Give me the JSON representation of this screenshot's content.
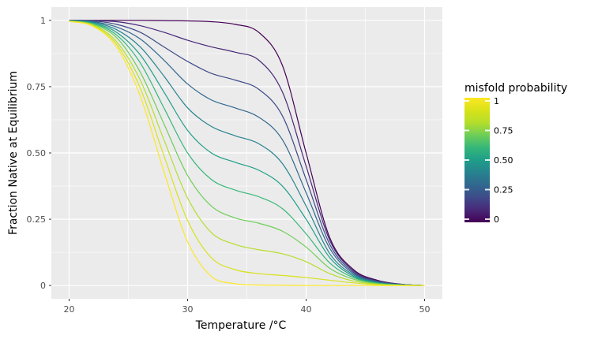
{
  "chart_data": {
    "type": "line",
    "xlabel": "Temperature /°C",
    "ylabel": "Fraction Native at Equilibrium",
    "xlim": [
      18.5,
      51.5
    ],
    "ylim": [
      -0.05,
      1.05
    ],
    "x_ticks": [
      20,
      30,
      40,
      50
    ],
    "x_tick_labels": [
      "20",
      "30",
      "40",
      "50"
    ],
    "y_ticks": [
      0,
      0.25,
      0.5,
      0.75,
      1
    ],
    "y_tick_labels": [
      "0",
      "0.25",
      "0.50",
      "0.75",
      "1"
    ],
    "grid": true,
    "legend": {
      "title": "misfold probability",
      "placement": "right",
      "type": "colorbar",
      "range": [
        0,
        1
      ],
      "breaks": [
        0,
        0.25,
        0.5,
        0.75,
        1
      ],
      "labels": [
        "0",
        "0.25",
        "0.50",
        "0.75",
        "1"
      ]
    },
    "colormap": "viridis",
    "x": [
      20,
      22,
      24,
      26,
      28,
      30,
      32,
      34,
      36,
      38,
      40,
      42,
      44,
      46,
      48,
      50
    ],
    "series": [
      {
        "color_value": 0.0,
        "values": [
          1.0,
          1.0,
          1.0,
          1.0,
          0.999,
          0.998,
          0.995,
          0.985,
          0.955,
          0.83,
          0.5,
          0.18,
          0.06,
          0.02,
          0.005,
          0.0
        ]
      },
      {
        "color_value": 0.1,
        "values": [
          1.0,
          0.999,
          0.995,
          0.98,
          0.955,
          0.925,
          0.9,
          0.88,
          0.85,
          0.73,
          0.45,
          0.17,
          0.055,
          0.018,
          0.005,
          0.0
        ]
      },
      {
        "color_value": 0.2,
        "values": [
          1.0,
          0.998,
          0.985,
          0.955,
          0.9,
          0.845,
          0.8,
          0.775,
          0.74,
          0.64,
          0.4,
          0.155,
          0.05,
          0.016,
          0.004,
          0.0
        ]
      },
      {
        "color_value": 0.3,
        "values": [
          0.999,
          0.995,
          0.975,
          0.93,
          0.85,
          0.76,
          0.7,
          0.67,
          0.635,
          0.55,
          0.35,
          0.14,
          0.045,
          0.014,
          0.004,
          0.0
        ]
      },
      {
        "color_value": 0.4,
        "values": [
          0.999,
          0.993,
          0.965,
          0.9,
          0.79,
          0.67,
          0.6,
          0.565,
          0.535,
          0.46,
          0.3,
          0.12,
          0.04,
          0.012,
          0.003,
          0.0
        ]
      },
      {
        "color_value": 0.5,
        "values": [
          0.999,
          0.99,
          0.955,
          0.87,
          0.73,
          0.585,
          0.5,
          0.465,
          0.435,
          0.375,
          0.25,
          0.105,
          0.035,
          0.01,
          0.003,
          0.0
        ]
      },
      {
        "color_value": 0.6,
        "values": [
          0.998,
          0.988,
          0.945,
          0.84,
          0.67,
          0.5,
          0.4,
          0.36,
          0.335,
          0.29,
          0.195,
          0.085,
          0.03,
          0.009,
          0.002,
          0.0
        ]
      },
      {
        "color_value": 0.7,
        "values": [
          0.998,
          0.985,
          0.935,
          0.805,
          0.61,
          0.415,
          0.3,
          0.255,
          0.235,
          0.205,
          0.145,
          0.065,
          0.024,
          0.007,
          0.002,
          0.0
        ]
      },
      {
        "color_value": 0.8,
        "values": [
          0.997,
          0.983,
          0.92,
          0.775,
          0.55,
          0.33,
          0.2,
          0.155,
          0.135,
          0.12,
          0.09,
          0.045,
          0.017,
          0.005,
          0.001,
          0.0
        ]
      },
      {
        "color_value": 0.9,
        "values": [
          0.997,
          0.98,
          0.91,
          0.745,
          0.49,
          0.245,
          0.105,
          0.06,
          0.045,
          0.038,
          0.03,
          0.02,
          0.01,
          0.003,
          0.001,
          0.0
        ]
      },
      {
        "color_value": 1.0,
        "values": [
          0.996,
          0.978,
          0.9,
          0.715,
          0.43,
          0.165,
          0.035,
          0.007,
          0.002,
          0.001,
          0.0,
          0.0,
          0.0,
          0.0,
          0.0,
          0.0
        ]
      }
    ]
  }
}
